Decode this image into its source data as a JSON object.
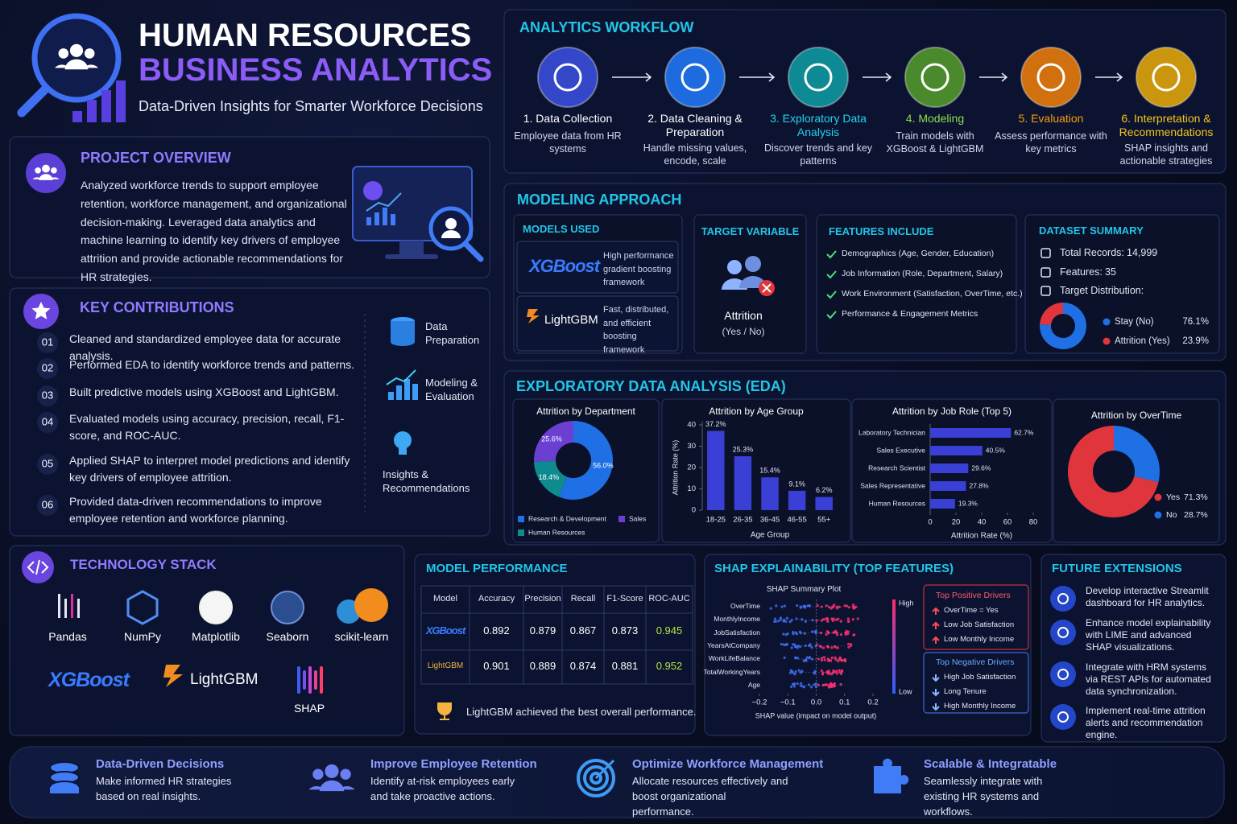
{
  "header": {
    "title": "HUMAN RESOURCES",
    "title_accent": "BUSINESS ANALYTICS",
    "subtitle": "Data-Driven Insights for Smarter Workforce Decisions"
  },
  "overview": {
    "title": "PROJECT OVERVIEW",
    "text": "Analyzed workforce trends to support employee retention, workforce management, and organizational decision-making. Leveraged data analytics and machine learning to identify key drivers of employee attrition and provide actionable recommendations for HR strategies."
  },
  "contributions": {
    "title": "KEY CONTRIBUTIONS",
    "items": [
      {
        "num": "01",
        "text": "Cleaned and standardized employee data for accurate analysis."
      },
      {
        "num": "02",
        "text": "Performed EDA to identify workforce trends and patterns."
      },
      {
        "num": "03",
        "text": "Built predictive models using XGBoost and LightGBM."
      },
      {
        "num": "04",
        "text": "Evaluated models using accuracy, precision, recall, F1-score, and ROC-AUC."
      },
      {
        "num": "05",
        "text": "Applied SHAP to interpret model predictions and identify key drivers of employee attrition."
      },
      {
        "num": "06",
        "text": "Provided data-driven recommendations to improve employee retention and workforce planning."
      }
    ],
    "stages": [
      "Data Preparation",
      "Modeling & Evaluation",
      "Insights & Recommendations"
    ]
  },
  "workflow": {
    "title": "ANALYTICS WORKFLOW",
    "steps": [
      {
        "title": "1. Data Collection",
        "text": "Employee data from HR systems",
        "color": "#3447c9",
        "text_color": "#ffffff"
      },
      {
        "title": "2. Data Cleaning & Preparation",
        "text": "Handle missing values, encode, scale",
        "color": "#1e6be0",
        "text_color": "#ffffff"
      },
      {
        "title": "3. Exploratory Data Analysis",
        "text": "Discover trends and key patterns",
        "color": "#0e8a94",
        "text_color": "#22d3ee"
      },
      {
        "title": "4. Modeling",
        "text": "Train models with XGBoost & LightGBM",
        "color": "#4b8a2c",
        "text_color": "#8be04a"
      },
      {
        "title": "5. Evaluation",
        "text": "Assess performance with key metrics",
        "color": "#d0700e",
        "text_color": "#f59e0b"
      },
      {
        "title": "6. Interpretation & Recommendations",
        "text": "SHAP insights and actionable strategies",
        "color": "#c9960e",
        "text_color": "#f5c518"
      }
    ]
  },
  "modeling": {
    "title": "MODELING APPROACH",
    "models_used": {
      "title": "MODELS USED",
      "models": [
        {
          "name": "XGBoost",
          "text": "High performance gradient boosting framework"
        },
        {
          "name": "LightGBM",
          "text": "Fast, distributed, and efficient boosting framework"
        }
      ]
    },
    "target": {
      "title": "TARGET VARIABLE",
      "name": "Attrition",
      "values": "(Yes / No)"
    },
    "features": {
      "title": "FEATURES INCLUDE",
      "items": [
        "Demographics (Age, Gender, Education)",
        "Job Information (Role, Department, Salary)",
        "Work Environment (Satisfaction, OverTime, etc.)",
        "Performance & Engagement Metrics"
      ]
    },
    "dataset": {
      "title": "DATASET SUMMARY",
      "records_label": "Total Records:",
      "records": "14,999",
      "features_label": "Features:",
      "features": 35,
      "target_label": "Target Distribution:"
    }
  },
  "eda": {
    "title": "EXPLORATORY DATA ANALYSIS (EDA)"
  },
  "chart_data": [
    {
      "type": "pie",
      "categories": [
        "Stay (No)",
        "Attrition (Yes)"
      ],
      "values": [
        76.1,
        23.9
      ],
      "value_labels": [
        "76.1%",
        "23.9%"
      ],
      "colors": [
        "#1f6fe5",
        "#e0353d"
      ]
    },
    {
      "type": "pie",
      "title": "Attrition by Department",
      "categories": [
        "Research & Development",
        "Human Resources",
        "Sales"
      ],
      "values": [
        56.0,
        18.4,
        25.6
      ],
      "value_labels": [
        "56.0%",
        "18.4%",
        "25.6%"
      ],
      "colors": [
        "#1f6fe5",
        "#0f8a8f",
        "#6a3fd2"
      ]
    },
    {
      "type": "bar",
      "title": "Attrition by Age Group",
      "ylabel": "Attrition Rate (%)",
      "xlabel": "Age Group",
      "categories": [
        "18-25",
        "26-35",
        "36-45",
        "46-55",
        "55+"
      ],
      "values": [
        37.2,
        25.3,
        15.4,
        9.1,
        6.2
      ],
      "value_labels": [
        "37.2%",
        "25.3%",
        "15.4%",
        "9.1%",
        "6.2%"
      ],
      "ylim": [
        0,
        40
      ],
      "yticks": [
        0,
        10,
        20,
        30,
        40
      ],
      "color": "#3a3fd6"
    },
    {
      "type": "hbar",
      "title": "Attrition by Job Role (Top 5)",
      "xlabel": "Attrition Rate (%)",
      "categories": [
        "Laboratory Technician",
        "Sales Executive",
        "Research Scientist",
        "Sales Representative",
        "Human Resources"
      ],
      "values": [
        62.7,
        40.5,
        29.6,
        27.8,
        19.3
      ],
      "value_labels": [
        "62.7%",
        "40.5%",
        "29.6%",
        "27.8%",
        "19.3%"
      ],
      "xlim": [
        0,
        80
      ],
      "xticks": [
        0,
        20,
        40,
        60,
        80
      ],
      "color": "#3a3fd6"
    },
    {
      "type": "pie",
      "title": "Attrition by OverTime",
      "categories": [
        "Yes",
        "No"
      ],
      "values": [
        71.3,
        28.7
      ],
      "value_labels": [
        "71.3%",
        "28.7%"
      ],
      "colors": [
        "#e0353d",
        "#1f6fe5"
      ],
      "clockwise": false
    }
  ],
  "performance": {
    "title": "MODEL PERFORMANCE",
    "columns": [
      "Model",
      "Accuracy",
      "Precision",
      "Recall",
      "F1-Score",
      "ROC-AUC"
    ],
    "rows": [
      [
        "XGBoost",
        0.892,
        0.879,
        0.867,
        0.873,
        0.945
      ],
      [
        "LightGBM",
        0.901,
        0.889,
        0.874,
        0.881,
        0.952
      ]
    ],
    "note": "LightGBM achieved the best overall performance."
  },
  "shap": {
    "title": "SHAP EXPLAINABILITY (TOP FEATURES)",
    "plot_title": "SHAP Summary Plot",
    "features": [
      "OverTime",
      "MonthlyIncome",
      "JobSatisfaction",
      "YearsAtCompany",
      "WorkLifeBalance",
      "TotalWorkingYears",
      "Age"
    ],
    "xlim": [
      -0.2,
      0.2
    ],
    "xticks": [
      {
        "value": -0.2,
        "label": "−0.2"
      },
      {
        "value": -0.1,
        "label": "−0.1"
      },
      {
        "value": 0,
        "label": "0.0"
      },
      0.1,
      0.2
    ],
    "xlabel": "SHAP value (impact on model output)",
    "high": "High",
    "low": "Low",
    "positive": {
      "title": "Top Positive Drivers",
      "items": [
        "OverTime = Yes",
        "Low Job Satisfaction",
        "Low Monthly Income"
      ]
    },
    "negative": {
      "title": "Top Negative Drivers",
      "items": [
        "High Job Satisfaction",
        "Long Tenure",
        "High Monthly Income"
      ]
    }
  },
  "tech": {
    "title": "TECHNOLOGY STACK",
    "tools": [
      "Pandas",
      "NumPy",
      "Matplotlib",
      "Seaborn",
      "scikit-learn",
      "XGBoost",
      "LightGBM",
      "SHAP"
    ]
  },
  "future": {
    "title": "FUTURE EXTENSIONS",
    "items": [
      "Develop interactive Streamlit dashboard for HR analytics.",
      "Enhance model explainability with LIME and advanced SHAP visualizations.",
      "Integrate with HRM systems via REST APIs for automated data synchronization.",
      "Implement real-time attrition alerts and recommendation engine."
    ]
  },
  "footer": {
    "items": [
      {
        "title": "Data-Driven Decisions",
        "text": "Make informed HR strategies based on real insights."
      },
      {
        "title": "Improve Employee Retention",
        "text": "Identify at-risk employees early and take proactive actions."
      },
      {
        "title": "Optimize Workforce Management",
        "text": "Allocate resources effectively and boost organizational performance."
      },
      {
        "title": "Scalable & Integratable",
        "text": "Seamlessly integrate with existing HR systems and workflows."
      }
    ]
  }
}
